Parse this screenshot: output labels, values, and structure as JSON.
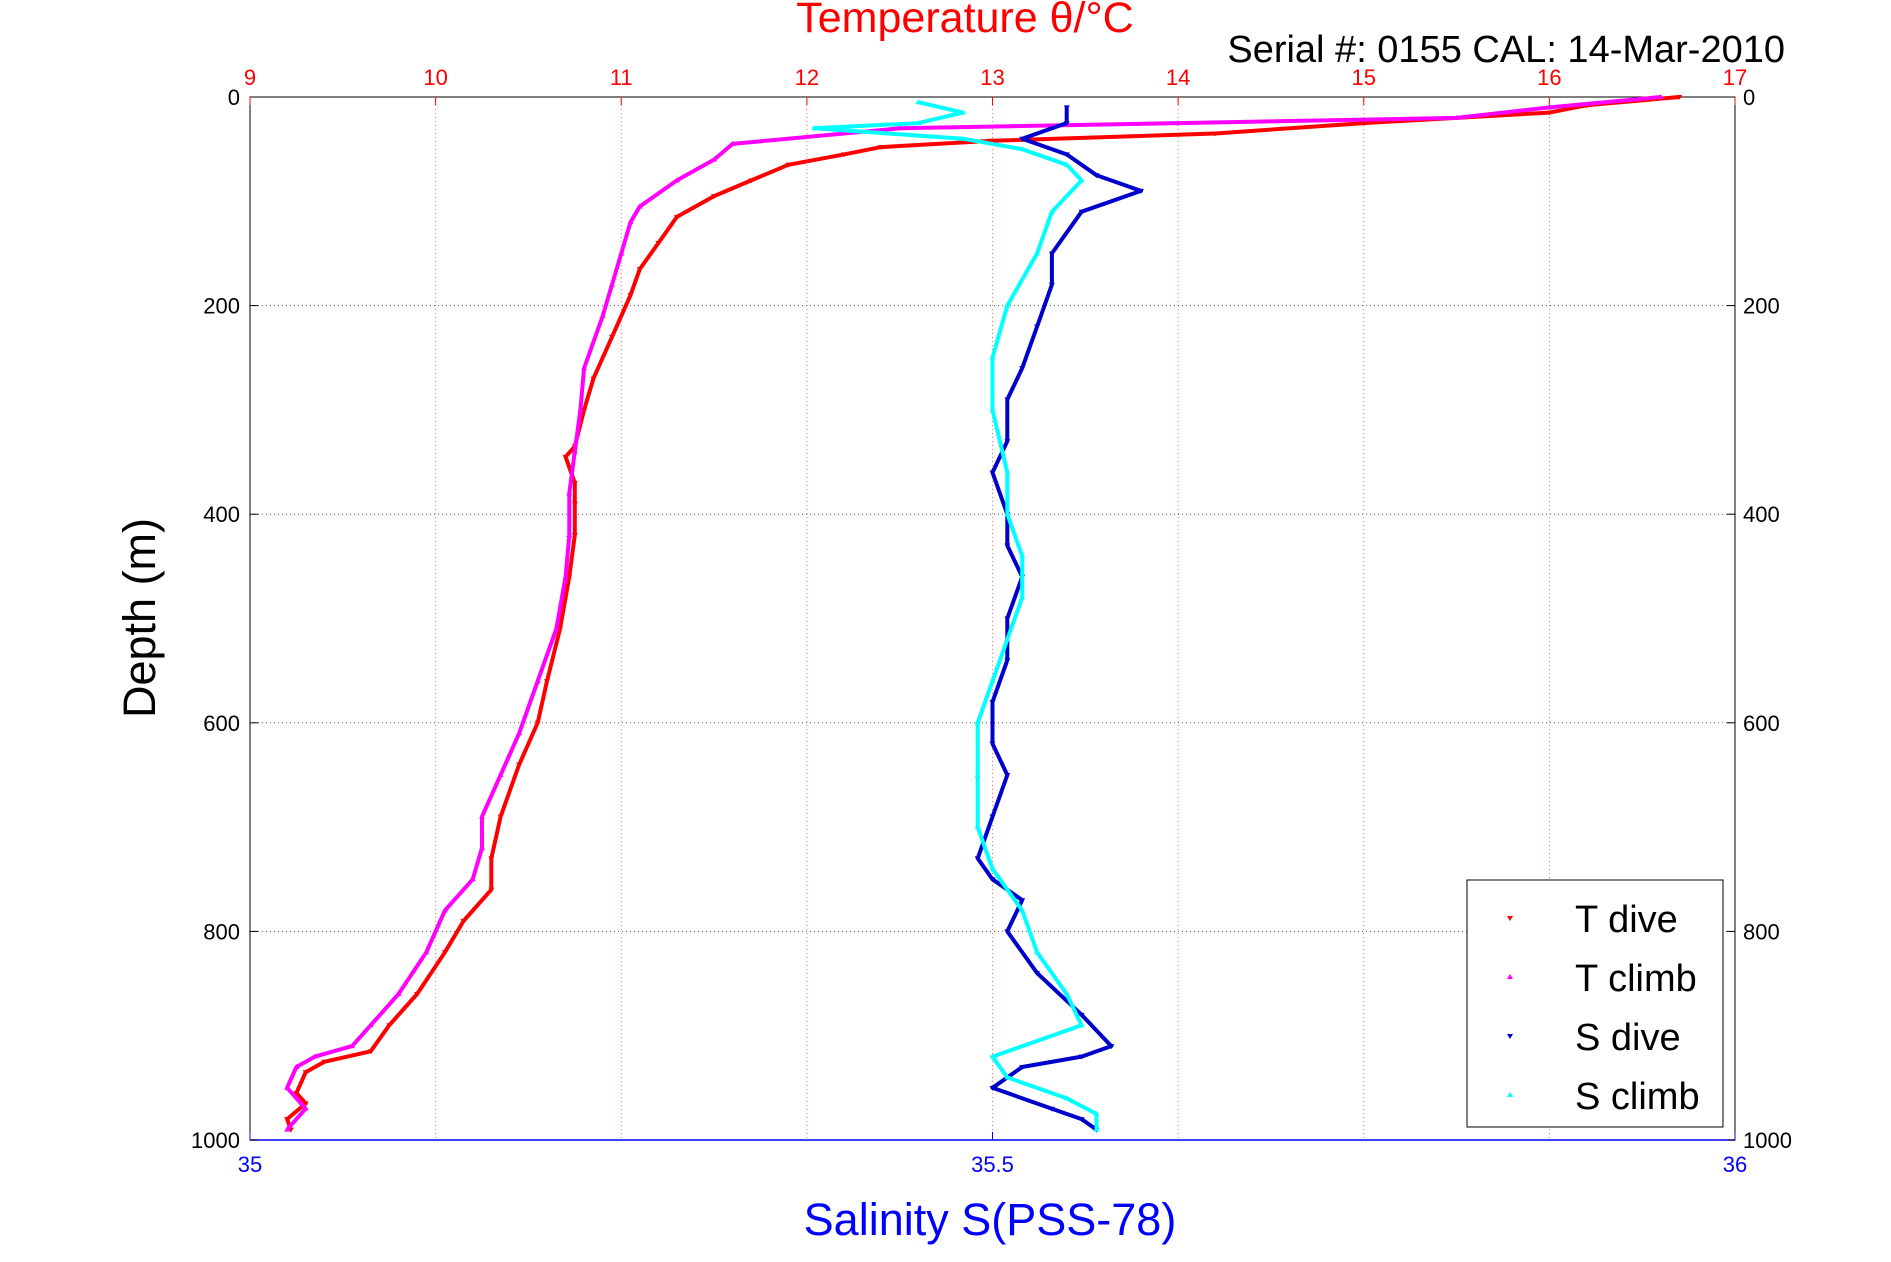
{
  "colors": {
    "temp_axis": "#ff0000",
    "sal_axis": "#0000ff",
    "t_dive": "#ff0000",
    "t_climb": "#ff00ff",
    "s_dive": "#0000cc",
    "s_climb": "#00ffff",
    "grid_temp": "#ff6666",
    "grid_depth": "#555555"
  },
  "chart_data": {
    "type": "scatter",
    "title": "Temperature θ/°C",
    "subtitle": "Serial #: 0155  CAL: 14-Mar-2010",
    "ylabel": "Depth (m)",
    "xlabel": "Salinity S(PSS-78)",
    "temp_axis": {
      "lim": [
        9,
        17
      ],
      "ticks": [
        9,
        10,
        11,
        12,
        13,
        14,
        15,
        16,
        17
      ],
      "tick_labels": [
        "9",
        "10",
        "11",
        "12",
        "13",
        "14",
        "15",
        "16",
        "17"
      ]
    },
    "sal_axis": {
      "lim": [
        35,
        36
      ],
      "ticks": [
        35,
        35.5,
        36
      ],
      "tick_labels": [
        "35",
        "35.5",
        "36"
      ]
    },
    "depth_axis": {
      "lim": [
        0,
        1000
      ],
      "reversed": true,
      "ticks": [
        0,
        200,
        400,
        600,
        800,
        1000
      ],
      "tick_labels": [
        "0",
        "200",
        "400",
        "600",
        "800",
        "1000"
      ]
    },
    "grid": true,
    "legend": {
      "position": "bottom-right",
      "entries": [
        "T dive",
        "T climb",
        "S dive",
        "S climb"
      ]
    },
    "series": [
      {
        "name": "T dive",
        "axis": "temp",
        "marker": "triangle-down",
        "points": [
          [
            16.7,
            0
          ],
          [
            16.2,
            8
          ],
          [
            16.0,
            15
          ],
          [
            15.0,
            25
          ],
          [
            14.2,
            35
          ],
          [
            13.0,
            42
          ],
          [
            12.4,
            48
          ],
          [
            12.2,
            55
          ],
          [
            11.9,
            65
          ],
          [
            11.7,
            80
          ],
          [
            11.5,
            95
          ],
          [
            11.3,
            115
          ],
          [
            11.2,
            140
          ],
          [
            11.1,
            165
          ],
          [
            11.05,
            190
          ],
          [
            10.95,
            230
          ],
          [
            10.85,
            270
          ],
          [
            10.8,
            300
          ],
          [
            10.75,
            335
          ],
          [
            10.7,
            345
          ],
          [
            10.75,
            370
          ],
          [
            10.75,
            390
          ],
          [
            10.75,
            420
          ],
          [
            10.72,
            460
          ],
          [
            10.67,
            510
          ],
          [
            10.6,
            560
          ],
          [
            10.55,
            600
          ],
          [
            10.45,
            640
          ],
          [
            10.35,
            690
          ],
          [
            10.3,
            730
          ],
          [
            10.3,
            760
          ],
          [
            10.15,
            790
          ],
          [
            10.05,
            820
          ],
          [
            9.9,
            860
          ],
          [
            9.75,
            890
          ],
          [
            9.65,
            915
          ],
          [
            9.4,
            925
          ],
          [
            9.3,
            935
          ],
          [
            9.25,
            955
          ],
          [
            9.3,
            965
          ],
          [
            9.2,
            980
          ],
          [
            9.22,
            990
          ]
        ]
      },
      {
        "name": "T climb",
        "axis": "temp",
        "marker": "triangle-up",
        "points": [
          [
            16.6,
            0
          ],
          [
            16.0,
            10
          ],
          [
            15.5,
            20
          ],
          [
            14.0,
            25
          ],
          [
            12.5,
            30
          ],
          [
            11.6,
            45
          ],
          [
            11.5,
            60
          ],
          [
            11.3,
            80
          ],
          [
            11.1,
            105
          ],
          [
            11.05,
            120
          ],
          [
            11.0,
            150
          ],
          [
            10.95,
            180
          ],
          [
            10.9,
            210
          ],
          [
            10.8,
            260
          ],
          [
            10.78,
            300
          ],
          [
            10.75,
            340
          ],
          [
            10.72,
            380
          ],
          [
            10.72,
            420
          ],
          [
            10.7,
            460
          ],
          [
            10.65,
            510
          ],
          [
            10.55,
            560
          ],
          [
            10.45,
            610
          ],
          [
            10.35,
            650
          ],
          [
            10.25,
            690
          ],
          [
            10.25,
            720
          ],
          [
            10.2,
            750
          ],
          [
            10.05,
            780
          ],
          [
            9.95,
            820
          ],
          [
            9.8,
            860
          ],
          [
            9.65,
            890
          ],
          [
            9.55,
            910
          ],
          [
            9.35,
            920
          ],
          [
            9.25,
            930
          ],
          [
            9.2,
            950
          ],
          [
            9.3,
            970
          ],
          [
            9.2,
            990
          ]
        ]
      },
      {
        "name": "S dive",
        "axis": "sal",
        "marker": "triangle-down",
        "points": [
          [
            35.55,
            10
          ],
          [
            35.55,
            25
          ],
          [
            35.52,
            40
          ],
          [
            35.55,
            55
          ],
          [
            35.57,
            75
          ],
          [
            35.6,
            90
          ],
          [
            35.56,
            110
          ],
          [
            35.54,
            150
          ],
          [
            35.54,
            180
          ],
          [
            35.53,
            220
          ],
          [
            35.52,
            260
          ],
          [
            35.51,
            290
          ],
          [
            35.51,
            330
          ],
          [
            35.5,
            360
          ],
          [
            35.51,
            400
          ],
          [
            35.51,
            430
          ],
          [
            35.52,
            460
          ],
          [
            35.51,
            500
          ],
          [
            35.51,
            540
          ],
          [
            35.5,
            580
          ],
          [
            35.5,
            620
          ],
          [
            35.51,
            650
          ],
          [
            35.5,
            690
          ],
          [
            35.49,
            730
          ],
          [
            35.5,
            750
          ],
          [
            35.52,
            770
          ],
          [
            35.51,
            800
          ],
          [
            35.53,
            840
          ],
          [
            35.56,
            880
          ],
          [
            35.58,
            910
          ],
          [
            35.56,
            920
          ],
          [
            35.52,
            930
          ],
          [
            35.5,
            950
          ],
          [
            35.54,
            970
          ],
          [
            35.56,
            980
          ],
          [
            35.57,
            990
          ]
        ]
      },
      {
        "name": "S climb",
        "axis": "sal",
        "marker": "triangle-up",
        "points": [
          [
            35.45,
            5
          ],
          [
            35.48,
            15
          ],
          [
            35.45,
            25
          ],
          [
            35.38,
            30
          ],
          [
            35.48,
            40
          ],
          [
            35.52,
            50
          ],
          [
            35.55,
            65
          ],
          [
            35.56,
            80
          ],
          [
            35.54,
            110
          ],
          [
            35.53,
            150
          ],
          [
            35.51,
            200
          ],
          [
            35.5,
            250
          ],
          [
            35.5,
            300
          ],
          [
            35.51,
            360
          ],
          [
            35.51,
            400
          ],
          [
            35.52,
            440
          ],
          [
            35.52,
            480
          ],
          [
            35.51,
            520
          ],
          [
            35.5,
            560
          ],
          [
            35.49,
            600
          ],
          [
            35.49,
            650
          ],
          [
            35.49,
            700
          ],
          [
            35.5,
            740
          ],
          [
            35.52,
            780
          ],
          [
            35.53,
            820
          ],
          [
            35.55,
            860
          ],
          [
            35.56,
            890
          ],
          [
            35.5,
            920
          ],
          [
            35.51,
            940
          ],
          [
            35.55,
            960
          ],
          [
            35.57,
            975
          ],
          [
            35.57,
            990
          ]
        ]
      }
    ]
  }
}
